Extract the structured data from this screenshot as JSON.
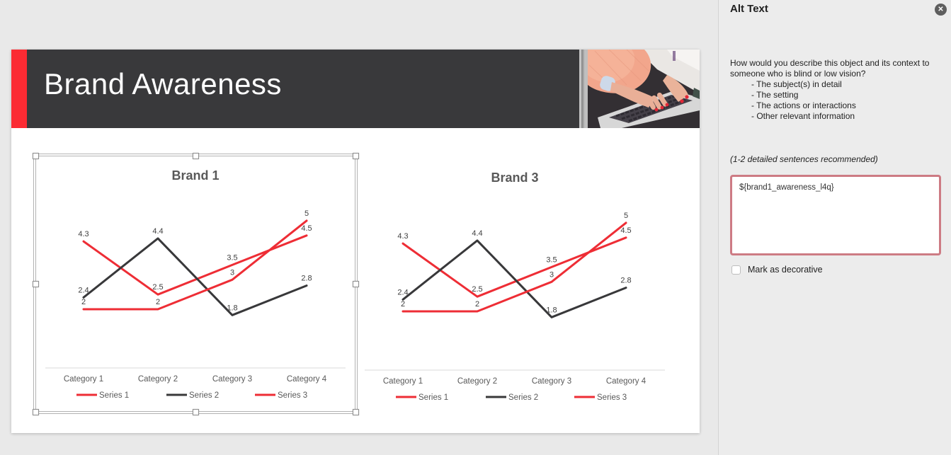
{
  "app": {
    "canvas_bg": "#e9e9e9",
    "panel_bg": "#ececec"
  },
  "icons": {
    "close": "✕"
  },
  "slide": {
    "title": "Brand Awareness",
    "title_band_color": "#39393b",
    "accent_color": "#fb2b33",
    "photo": "hands-typing-on-laptop-photo"
  },
  "chart_data": [
    {
      "type": "line",
      "title": "Brand 1",
      "categories": [
        "Category 1",
        "Category 2",
        "Category 3",
        "Category 4"
      ],
      "series": [
        {
          "name": "Series 1",
          "color": "#ee2d35",
          "values": [
            4.3,
            2.5,
            3.5,
            4.5
          ]
        },
        {
          "name": "Series 2",
          "color": "#38383a",
          "values": [
            2.4,
            4.4,
            1.8,
            2.8
          ]
        },
        {
          "name": "Series 3",
          "color": "#ee2d35",
          "values": [
            2,
            2,
            3,
            5
          ]
        }
      ],
      "data_labels": "above",
      "legend_position": "bottom",
      "grid": false,
      "ylim": [
        0,
        5.5
      ],
      "selected": true
    },
    {
      "type": "line",
      "title": "Brand 3",
      "categories": [
        "Category 1",
        "Category 2",
        "Category 3",
        "Category 4"
      ],
      "series": [
        {
          "name": "Series 1",
          "color": "#ee2d35",
          "values": [
            4.3,
            2.5,
            3.5,
            4.5
          ]
        },
        {
          "name": "Series 2",
          "color": "#38383a",
          "values": [
            2.4,
            4.4,
            1.8,
            2.8
          ]
        },
        {
          "name": "Series 3",
          "color": "#ee2d35",
          "values": [
            2,
            2,
            3,
            5
          ]
        }
      ],
      "data_labels": "above",
      "legend_position": "bottom",
      "grid": false,
      "ylim": [
        0,
        5.5
      ],
      "selected": false
    }
  ],
  "alt_text_panel": {
    "title": "Alt Text",
    "question": "How would you describe this object and its context to someone who is blind or low vision?",
    "bullets": [
      "- The subject(s) in detail",
      "- The setting",
      "- The actions or interactions",
      "- Other relevant information"
    ],
    "hint": "(1-2 detailed sentences recommended)",
    "textarea_value": "${brand1_awareness_l4q}",
    "textarea_border_color": "#cd7b84",
    "checkbox_label": "Mark as decorative",
    "checkbox_checked": false
  }
}
